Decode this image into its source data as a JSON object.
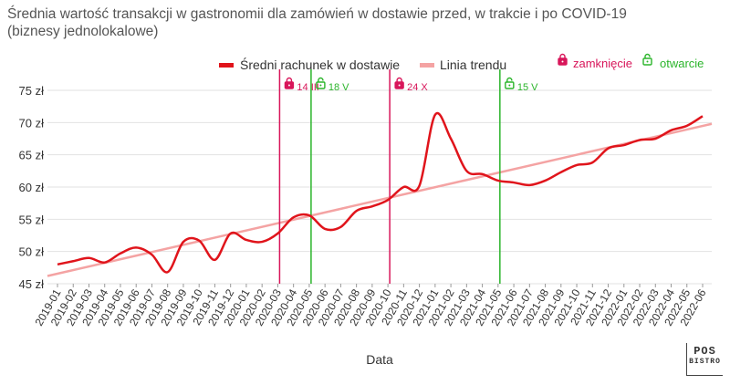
{
  "chart_data": {
    "type": "line",
    "title": "Średnia wartość transakcji w gastronomii dla zamówień w dostawie przed, w trakcie i po COVID-19 (biznesy jednolokalowe)",
    "xlabel": "Data",
    "ylabel": "",
    "ylim": [
      45,
      75
    ],
    "yticks": [
      45,
      50,
      55,
      60,
      65,
      70,
      75
    ],
    "y_unit": "zł",
    "categories": [
      "2019-01",
      "2019-02",
      "2019-03",
      "2019-04",
      "2019-05",
      "2019-06",
      "2019-07",
      "2019-08",
      "2019-09",
      "2019-10",
      "2019-11",
      "2019-12",
      "2020-01",
      "2020-02",
      "2020-03",
      "2020-04",
      "2020-05",
      "2020-06",
      "2020-07",
      "2020-08",
      "2020-09",
      "2020-10",
      "2020-11",
      "2020-12",
      "2021-01",
      "2021-02",
      "2021-03",
      "2021-04",
      "2021-05",
      "2021-06",
      "2021-07",
      "2021-08",
      "2021-09",
      "2021-10",
      "2021-11",
      "2021-12",
      "2022-01",
      "2022-02",
      "2022-03",
      "2022-04",
      "2022-05",
      "2022-06"
    ],
    "series": [
      {
        "name": "Średni rachunek w dostawie",
        "color": "#e0141b",
        "values": [
          48.0,
          48.5,
          49.0,
          48.3,
          49.7,
          50.6,
          49.5,
          46.8,
          51.5,
          51.7,
          48.7,
          52.8,
          51.8,
          51.5,
          52.8,
          55.3,
          55.6,
          53.5,
          53.8,
          56.3,
          57.0,
          58.0,
          60.0,
          60.2,
          71.2,
          67.5,
          62.5,
          62.0,
          61.0,
          60.7,
          60.3,
          61.0,
          62.3,
          63.4,
          63.8,
          66.0,
          66.5,
          67.3,
          67.5,
          68.8,
          69.5,
          71.0
        ]
      },
      {
        "name": "Linia trendu",
        "color": "#f4a3a3",
        "trend": [
          46.2,
          69.8
        ]
      }
    ],
    "legend_position": "top",
    "grid": "horizontal",
    "events": [
      {
        "label": "14 III",
        "type": "zamknięcie",
        "category": "2020-03",
        "color": "#d8165a"
      },
      {
        "label": "18 V",
        "type": "otwarcie",
        "category": "2020-05",
        "color": "#2bb52b"
      },
      {
        "label": "24 X",
        "type": "zamknięcie",
        "category": "2020-10",
        "color": "#d8165a"
      },
      {
        "label": "15 V",
        "type": "otwarcie",
        "category": "2021-05",
        "color": "#2bb52b"
      }
    ],
    "event_legend": [
      {
        "label": "zamknięcie",
        "icon": "lock-closed-icon",
        "color": "#d8165a"
      },
      {
        "label": "otwarcie",
        "icon": "lock-open-icon",
        "color": "#2bb52b"
      }
    ]
  },
  "logo": {
    "line1": "POS",
    "line2": "BISTRO"
  }
}
